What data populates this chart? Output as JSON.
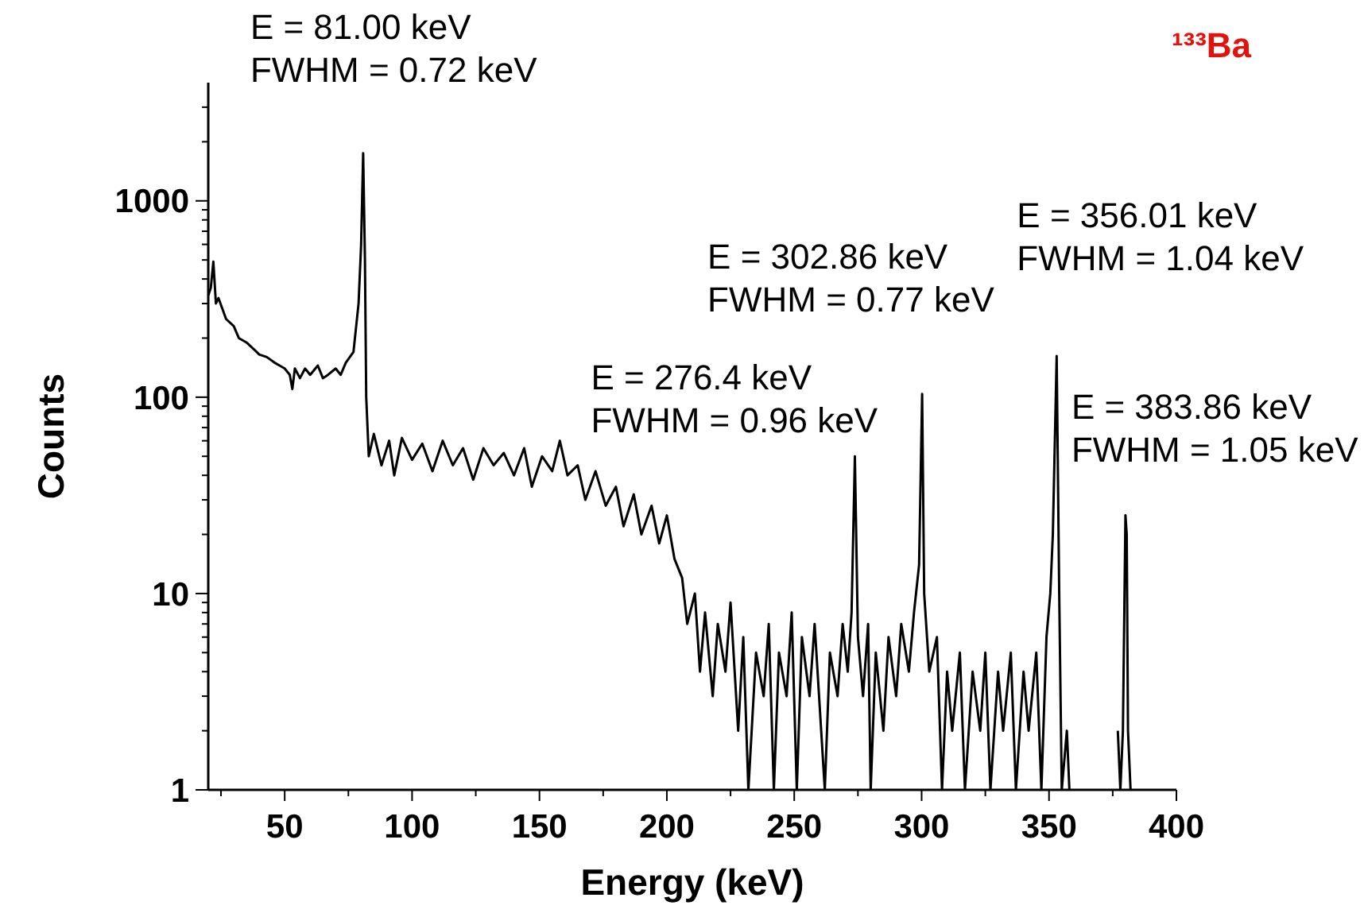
{
  "chart_data": {
    "type": "line",
    "title": "¹³³Ba",
    "xlabel": "Energy (keV)",
    "ylabel": "Counts",
    "log": "y",
    "grid": false,
    "marker": "none",
    "line_style": "solid",
    "xlim": [
      20,
      400
    ],
    "ylim": [
      1,
      4000
    ],
    "xticks": [
      {
        "value": 25,
        "label": null
      },
      50,
      {
        "value": 75,
        "label": null
      },
      100,
      {
        "value": 125,
        "label": null
      },
      150,
      {
        "value": 175,
        "label": null
      },
      200,
      {
        "value": 225,
        "label": null
      },
      250,
      {
        "value": 275,
        "label": null
      },
      300,
      {
        "value": 325,
        "label": null
      },
      350,
      {
        "value": 375,
        "label": null
      },
      400
    ],
    "yticks": [
      1,
      {
        "value": 2,
        "label": null
      },
      {
        "value": 3,
        "label": null
      },
      {
        "value": 4,
        "label": null
      },
      {
        "value": 5,
        "label": null
      },
      {
        "value": 6,
        "label": null
      },
      {
        "value": 7,
        "label": null
      },
      {
        "value": 8,
        "label": null
      },
      {
        "value": 9,
        "label": null
      },
      10,
      {
        "value": 20,
        "label": null
      },
      {
        "value": 30,
        "label": null
      },
      {
        "value": 40,
        "label": null
      },
      {
        "value": 50,
        "label": null
      },
      {
        "value": 60,
        "label": null
      },
      {
        "value": 70,
        "label": null
      },
      {
        "value": 80,
        "label": null
      },
      {
        "value": 90,
        "label": null
      },
      100,
      {
        "value": 200,
        "label": null
      },
      {
        "value": 300,
        "label": null
      },
      {
        "value": 400,
        "label": null
      },
      {
        "value": 500,
        "label": null
      },
      {
        "value": 600,
        "label": null
      },
      {
        "value": 700,
        "label": null
      },
      {
        "value": 800,
        "label": null
      },
      {
        "value": 900,
        "label": null
      },
      1000,
      {
        "value": 2000,
        "label": null
      },
      {
        "value": 3000,
        "label": null
      }
    ],
    "annotations": [
      {
        "text": "E = 81.00 keV\nFWHM = 0.72 keV",
        "x": 80.8,
        "y": 1750
      },
      {
        "text": "E = 276.4 keV\nFWHM = 0.96 keV",
        "x": 273.8,
        "y": 50
      },
      {
        "text": "E = 302.86 keV\nFWHM = 0.77 keV",
        "x": 300.2,
        "y": 104
      },
      {
        "text": "E = 356.01 keV\nFWHM = 1.04 keV",
        "x": 353,
        "y": 162
      },
      {
        "text": "E = 383.86 keV\nFWHM = 1.05 keV",
        "x": 380,
        "y": 25
      }
    ],
    "series": [
      {
        "color": "#000000",
        "x": [
          20,
          21,
          22,
          23,
          24,
          27,
          30,
          32,
          35,
          38,
          40,
          43,
          46,
          48,
          50,
          52,
          53,
          54,
          56,
          58,
          60,
          63,
          65,
          67,
          70,
          72,
          74,
          77,
          79,
          80,
          80.8,
          81.5,
          82,
          83,
          85,
          88,
          91,
          93,
          96,
          100,
          104,
          108,
          112,
          116,
          120,
          124,
          128,
          132,
          136,
          140,
          144,
          147,
          151,
          155,
          158,
          161,
          165,
          168,
          172,
          176,
          180,
          183,
          187,
          190,
          194,
          197,
          200,
          203,
          206,
          208,
          211,
          213,
          215,
          218,
          220,
          223,
          225,
          228,
          230,
          232,
          235,
          238,
          240,
          242,
          244,
          247,
          249,
          251,
          253,
          256,
          258,
          262,
          264,
          267,
          269,
          271,
          272.5,
          273.8,
          275,
          277,
          279,
          280,
          282,
          285,
          287,
          290,
          292,
          295,
          297,
          299,
          300.2,
          301,
          303,
          306,
          308,
          310,
          312,
          315,
          317,
          320,
          323,
          325,
          327,
          330,
          332,
          335,
          337,
          340,
          342,
          345,
          347,
          349,
          350.5,
          351.5,
          353,
          354,
          355,
          357,
          358,
          360,
          376,
          377,
          378,
          379,
          380,
          380.5,
          381,
          382
        ],
        "values": [
          330,
          360,
          490,
          300,
          320,
          250,
          230,
          200,
          190,
          175,
          165,
          160,
          150,
          145,
          140,
          130,
          110,
          140,
          125,
          140,
          130,
          145,
          125,
          130,
          140,
          130,
          150,
          170,
          300,
          600,
          1750,
          500,
          100,
          50,
          65,
          45,
          60,
          40,
          62,
          48,
          58,
          42,
          60,
          45,
          55,
          38,
          55,
          45,
          52,
          40,
          55,
          35,
          50,
          42,
          60,
          40,
          45,
          30,
          42,
          28,
          35,
          22,
          32,
          20,
          28,
          18,
          25,
          15,
          12,
          7,
          10,
          4,
          8,
          3,
          7,
          4,
          9,
          2,
          6,
          1,
          5,
          3,
          7,
          1,
          5,
          3,
          8,
          1,
          6,
          3,
          7,
          1,
          5,
          3,
          7,
          4,
          8,
          50,
          6,
          3,
          7,
          1,
          5,
          2,
          6,
          3,
          7,
          4,
          8,
          14,
          104,
          10,
          4,
          6,
          1,
          4,
          2,
          5,
          1,
          4,
          2,
          5,
          1,
          4,
          2,
          5,
          1,
          4,
          2,
          5,
          1,
          6,
          10,
          20,
          162,
          10,
          1,
          2,
          1,
          null,
          null,
          2,
          1,
          2,
          25,
          20,
          2,
          1
        ]
      }
    ]
  }
}
